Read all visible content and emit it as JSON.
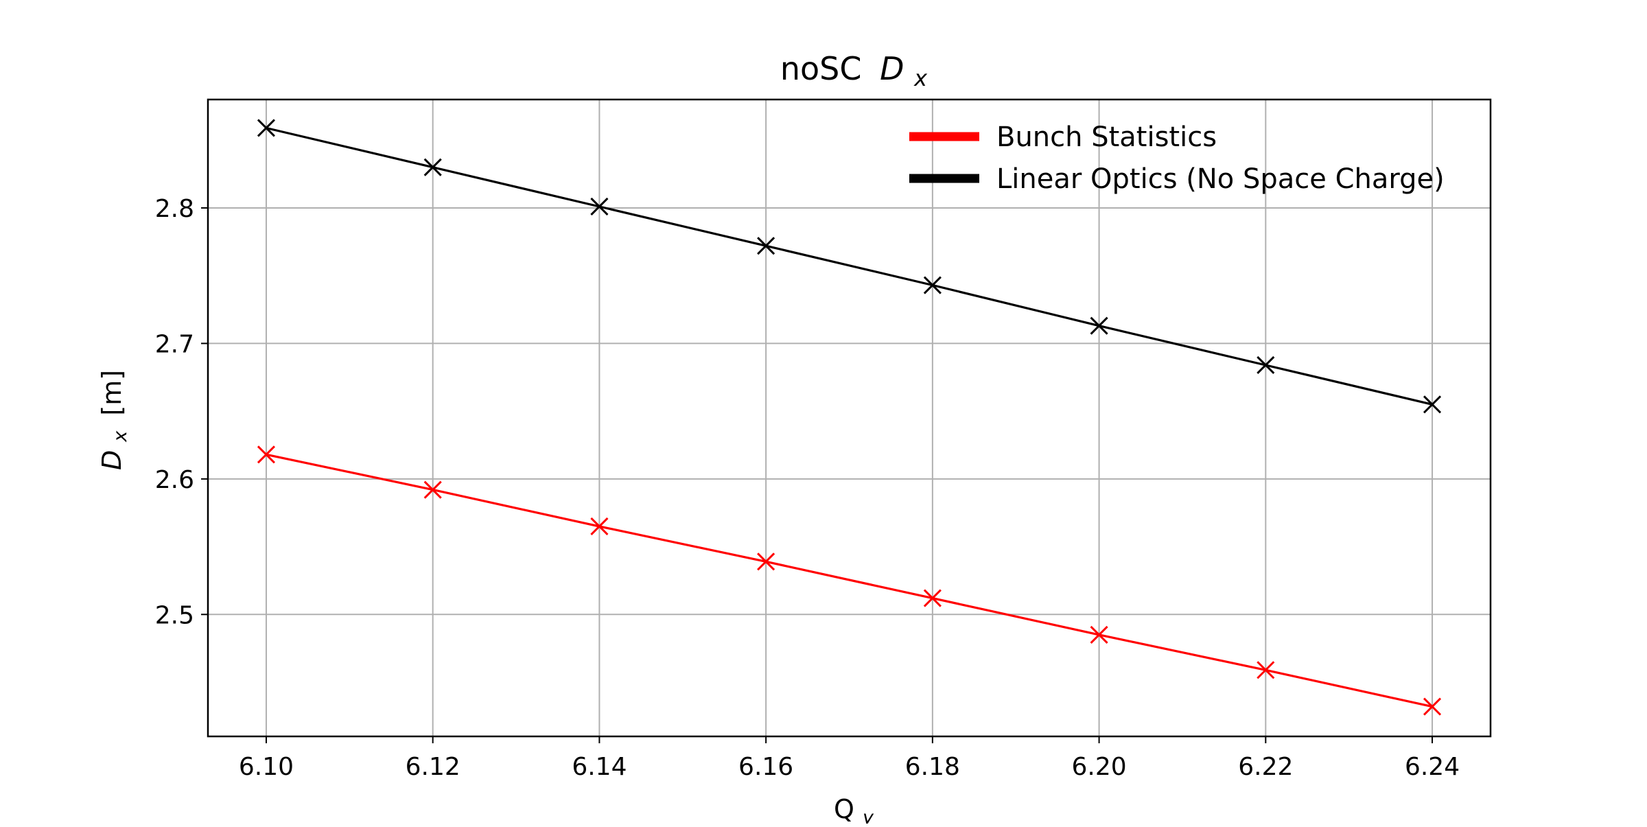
{
  "chart_data": {
    "type": "line",
    "title_main": "noSC",
    "title_symbol": "D",
    "title_subscript": "x",
    "xlabel_main": "Q",
    "xlabel_subscript": "y",
    "ylabel_symbol": "D",
    "ylabel_subscript": "x",
    "ylabel_unit": "[m]",
    "x": [
      6.1,
      6.12,
      6.14,
      6.16,
      6.18,
      6.2,
      6.22,
      6.24
    ],
    "xlim": [
      6.093,
      6.247
    ],
    "ylim": [
      2.41,
      2.88
    ],
    "xticks": [
      "6.10",
      "6.12",
      "6.14",
      "6.16",
      "6.18",
      "6.20",
      "6.22",
      "6.24"
    ],
    "yticks": [
      "2.5",
      "2.6",
      "2.7",
      "2.8"
    ],
    "grid": true,
    "legend_position": "top-right",
    "series": [
      {
        "name": "Bunch Statistics",
        "color": "#ff0000",
        "marker": "x",
        "values": [
          2.618,
          2.592,
          2.565,
          2.539,
          2.512,
          2.485,
          2.459,
          2.432
        ]
      },
      {
        "name": "Linear Optics (No Space Charge)",
        "color": "#000000",
        "marker": "x",
        "values": [
          2.859,
          2.83,
          2.801,
          2.772,
          2.743,
          2.713,
          2.684,
          2.655
        ]
      }
    ]
  }
}
